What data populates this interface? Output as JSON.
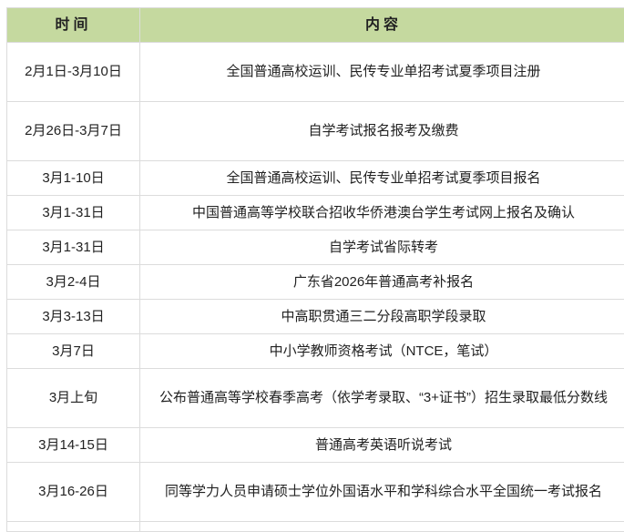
{
  "table": {
    "headers": [
      "时间",
      "内容"
    ],
    "rows": [
      {
        "time": "2月1日-3月10日",
        "content": "全国普通高校运训、民传专业单招考试夏季项目注册"
      },
      {
        "time": "2月26日-3月7日",
        "content": "自学考试报名报考及缴费"
      },
      {
        "time": "3月1-10日",
        "content": "全国普通高校运训、民传专业单招考试夏季项目报名"
      },
      {
        "time": "3月1-31日",
        "content": "中国普通高等学校联合招收华侨港澳台学生考试网上报名及确认"
      },
      {
        "time": "3月1-31日",
        "content": "自学考试省际转考"
      },
      {
        "time": "3月2-4日",
        "content": "广东省2026年普通高考补报名"
      },
      {
        "time": "3月3-13日",
        "content": "中高职贯通三二分段高职学段录取"
      },
      {
        "time": "3月7日",
        "content": "中小学教师资格考试（NTCE，笔试）"
      },
      {
        "time": "3月上旬",
        "content": "公布普通高等学校春季高考（依学考录取、“3+证书”）招生录取最低分数线"
      },
      {
        "time": "3月14-15日",
        "content": "普通高考英语听说考试"
      },
      {
        "time": "3月16-26日",
        "content": "同等学力人员申请硕士学位外国语水平和学科综合水平全国统一考试报名"
      }
    ]
  },
  "colors": {
    "header_bg": "#c5d99f",
    "border": "#dcdcdc"
  }
}
